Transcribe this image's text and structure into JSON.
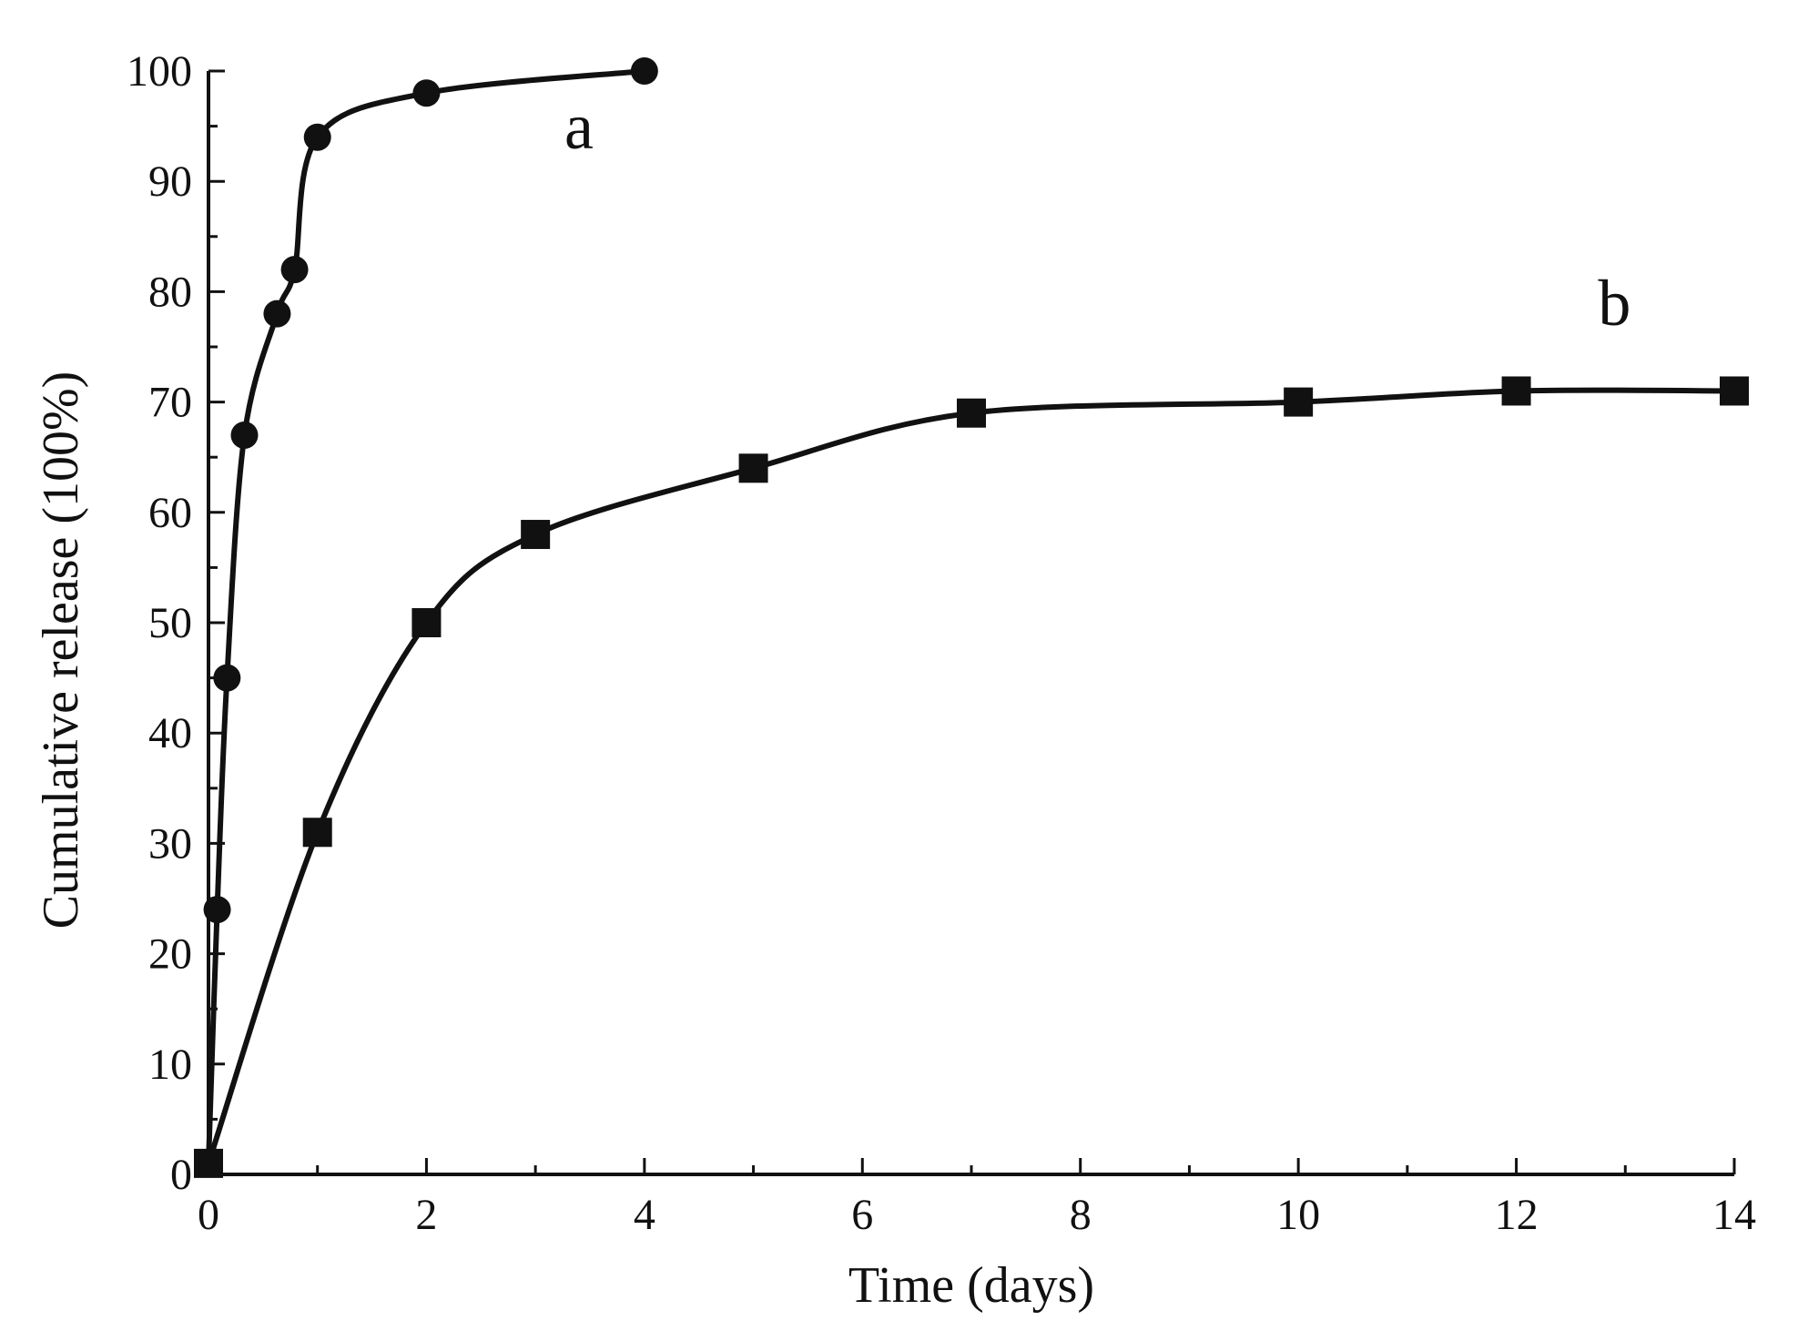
{
  "chart_data": {
    "type": "line",
    "xlabel": "Time (days)",
    "ylabel": "Cumulative release (100%)",
    "xlim": [
      0,
      14
    ],
    "ylim": [
      0,
      100
    ],
    "xticks": [
      0,
      2,
      4,
      6,
      8,
      10,
      12,
      14
    ],
    "yticks": [
      0,
      10,
      20,
      30,
      40,
      50,
      60,
      70,
      80,
      90,
      100
    ],
    "grid": false,
    "series": [
      {
        "name": "a",
        "marker": "circle",
        "x": [
          0,
          0.08,
          0.17,
          0.33,
          0.63,
          0.79,
          1,
          2,
          4
        ],
        "y": [
          1,
          24,
          45,
          67,
          78,
          82,
          94,
          98,
          100
        ]
      },
      {
        "name": "b",
        "marker": "square",
        "x": [
          0,
          1,
          2,
          3,
          5,
          7,
          10,
          12,
          14
        ],
        "y": [
          1,
          31,
          50,
          58,
          64,
          69,
          70,
          71,
          71
        ]
      }
    ],
    "annotations": [
      {
        "text": "a",
        "x": 3.4,
        "y": 93
      },
      {
        "text": "b",
        "x": 12.9,
        "y": 77
      }
    ]
  }
}
